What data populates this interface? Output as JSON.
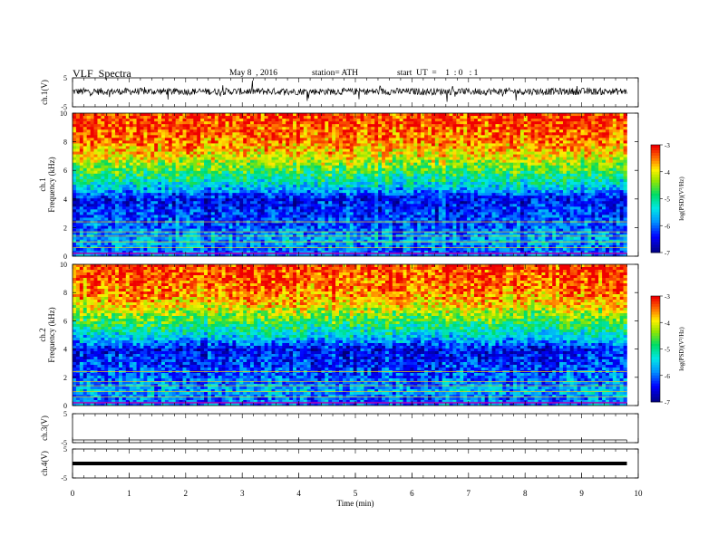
{
  "header": {
    "title": "VLF  Spectra",
    "date": "May 8  , 2016",
    "station": "station= ATH",
    "start": "start  UT  =    1  : 0   : 1"
  },
  "chart_data": {
    "type": "heatmap",
    "xlabel": "Time  (min)",
    "xlim": [
      0,
      10
    ],
    "xticks": [
      "0",
      "1",
      "2",
      "3",
      "4",
      "5",
      "6",
      "7",
      "8",
      "9",
      "10"
    ],
    "data_end_min": 9.8,
    "panels": [
      {
        "id": "ch1-wave",
        "type": "line",
        "ylabel": "ch.1(V)",
        "ylim": [
          -5,
          5
        ],
        "yticks": [
          "5",
          "-5"
        ],
        "baseline": 0.3,
        "noise_amplitude": 0.6
      },
      {
        "id": "ch1-spec",
        "type": "heatmap",
        "ylabel": "Frequency  (kHz)",
        "sublabel": "ch.1",
        "ylim": [
          0,
          10
        ],
        "yticks": [
          "0",
          "2",
          "4",
          "6",
          "8",
          "10"
        ],
        "colorbar": {
          "label": "log(PSD)(V²/Hz)",
          "ticks": [
            "-3",
            "-4",
            "-5",
            "-6",
            "-7"
          ],
          "range": [
            -7,
            -3
          ]
        }
      },
      {
        "id": "ch2-spec",
        "type": "heatmap",
        "ylabel": "Frequency  (kHz)",
        "sublabel": "ch.2",
        "ylim": [
          0,
          10
        ],
        "yticks": [
          "0",
          "2",
          "4",
          "6",
          "8",
          "10"
        ],
        "colorbar": {
          "label": "log(PSD)(V²/Hz)",
          "ticks": [
            "-3",
            "-4",
            "-5",
            "-6",
            "-7"
          ],
          "range": [
            -7,
            -3
          ]
        }
      },
      {
        "id": "ch3-wave",
        "type": "line",
        "ylabel": "ch.3(V)",
        "ylim": [
          -5,
          5
        ],
        "yticks": [
          "5",
          "-5"
        ],
        "baseline": -5
      },
      {
        "id": "ch4-wave",
        "type": "line",
        "ylabel": "ch.4(V)",
        "ylim": [
          -5,
          5
        ],
        "yticks": [
          "5",
          "-5"
        ],
        "baseline": 0
      }
    ],
    "spectrum_profile": {
      "freq_khz": [
        0,
        0.5,
        1,
        1.5,
        2,
        2.5,
        3,
        3.5,
        4,
        4.5,
        5,
        5.5,
        6,
        6.5,
        7,
        8,
        9,
        10
      ],
      "log_psd": [
        -5.8,
        -6.0,
        -5.6,
        -5.8,
        -6.0,
        -6.1,
        -6.2,
        -6.3,
        -6.4,
        -5.8,
        -5.3,
        -5.0,
        -4.6,
        -4.3,
        -3.9,
        -3.5,
        -3.3,
        -3.2
      ]
    }
  }
}
